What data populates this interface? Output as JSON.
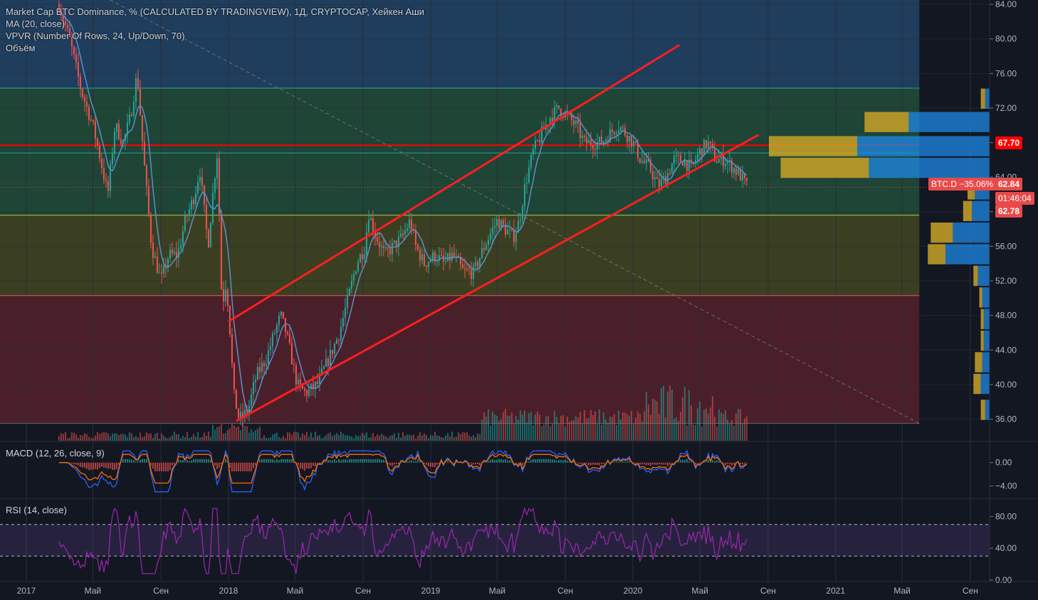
{
  "legend": {
    "title": "Market Cap BTC Dominance, % (CALCULATED BY TRADINGVIEW), 1Д, CRYPTOCAP, Хейкен Аши",
    "ma": "MA (20, close)",
    "vpvr": "VPVR (Number Of Rows, 24, Up/Down, 70)",
    "volume": "Объём"
  },
  "macd_title": "MACD (12, 26, close, 9)",
  "rsi_title": "RSI (14, close)",
  "price_tags": {
    "level": "67.70",
    "symbol": "BTC.D",
    "change": "−35.06%",
    "last": "62.84",
    "countdown": "01:46:04",
    "low": "62.78"
  },
  "colors": {
    "up": "#26a69a",
    "down": "#ef5350",
    "channel": "#ff1f1f",
    "ma": "#5b8fc9",
    "rsi": "#9c27b0",
    "macd": "#2962ff",
    "signal": "#ff6d00",
    "tag_red": "#e84a4a",
    "tag_level": "#ff0000"
  },
  "chart_data": {
    "type": "candlestick",
    "symbol": "Market Cap BTC Dominance, %",
    "timeframe": "1Д",
    "x_axis": {
      "ticks": [
        "2017",
        "Май",
        "Сен",
        "2018",
        "Май",
        "Сен",
        "2019",
        "Май",
        "Сен",
        "2020",
        "Май",
        "Сен",
        "2021",
        "Май",
        "Сен"
      ]
    },
    "price_axis": {
      "ticks": [
        "84.00",
        "80.00",
        "76.00",
        "72.00",
        "68.00",
        "64.00",
        "60.00",
        "56.00",
        "52.00",
        "48.00",
        "44.00",
        "40.00",
        "36.00"
      ],
      "range": [
        33.5,
        84.5
      ]
    },
    "price_path": [
      {
        "d": "2017-03-01",
        "v": 84
      },
      {
        "d": "2017-03-20",
        "v": 80
      },
      {
        "d": "2017-04-10",
        "v": 74
      },
      {
        "d": "2017-05-01",
        "v": 70
      },
      {
        "d": "2017-05-15",
        "v": 66
      },
      {
        "d": "2017-05-28",
        "v": 62
      },
      {
        "d": "2017-06-10",
        "v": 70
      },
      {
        "d": "2017-06-25",
        "v": 68
      },
      {
        "d": "2017-07-08",
        "v": 71
      },
      {
        "d": "2017-07-20",
        "v": 76
      },
      {
        "d": "2017-08-01",
        "v": 66
      },
      {
        "d": "2017-08-15",
        "v": 56
      },
      {
        "d": "2017-09-01",
        "v": 52
      },
      {
        "d": "2017-09-15",
        "v": 55
      },
      {
        "d": "2017-10-01",
        "v": 55
      },
      {
        "d": "2017-10-15",
        "v": 59
      },
      {
        "d": "2017-11-01",
        "v": 62
      },
      {
        "d": "2017-11-10",
        "v": 65
      },
      {
        "d": "2017-11-25",
        "v": 56
      },
      {
        "d": "2017-12-05",
        "v": 63
      },
      {
        "d": "2017-12-12",
        "v": 67
      },
      {
        "d": "2017-12-20",
        "v": 49
      },
      {
        "d": "2017-12-28",
        "v": 52
      },
      {
        "d": "2018-01-05",
        "v": 45
      },
      {
        "d": "2018-01-10",
        "v": 39
      },
      {
        "d": "2018-01-20",
        "v": 36
      },
      {
        "d": "2018-02-05",
        "v": 37
      },
      {
        "d": "2018-02-20",
        "v": 41
      },
      {
        "d": "2018-03-10",
        "v": 43
      },
      {
        "d": "2018-03-25",
        "v": 46
      },
      {
        "d": "2018-04-05",
        "v": 48
      },
      {
        "d": "2018-04-15",
        "v": 46
      },
      {
        "d": "2018-04-25",
        "v": 43
      },
      {
        "d": "2018-05-05",
        "v": 40
      },
      {
        "d": "2018-05-20",
        "v": 39
      },
      {
        "d": "2018-06-10",
        "v": 40
      },
      {
        "d": "2018-07-01",
        "v": 43
      },
      {
        "d": "2018-07-20",
        "v": 46
      },
      {
        "d": "2018-08-05",
        "v": 50
      },
      {
        "d": "2018-08-20",
        "v": 54
      },
      {
        "d": "2018-09-05",
        "v": 56
      },
      {
        "d": "2018-09-10",
        "v": 60
      },
      {
        "d": "2018-09-25",
        "v": 57
      },
      {
        "d": "2018-10-10",
        "v": 55
      },
      {
        "d": "2018-10-25",
        "v": 56
      },
      {
        "d": "2018-11-10",
        "v": 57
      },
      {
        "d": "2018-11-25",
        "v": 59
      },
      {
        "d": "2018-12-05",
        "v": 56
      },
      {
        "d": "2018-12-20",
        "v": 54
      },
      {
        "d": "2019-01-10",
        "v": 55
      },
      {
        "d": "2019-01-25",
        "v": 54
      },
      {
        "d": "2019-02-10",
        "v": 55
      },
      {
        "d": "2019-03-01",
        "v": 53
      },
      {
        "d": "2019-03-20",
        "v": 53
      },
      {
        "d": "2019-04-01",
        "v": 55
      },
      {
        "d": "2019-04-15",
        "v": 57
      },
      {
        "d": "2019-05-01",
        "v": 59
      },
      {
        "d": "2019-05-15",
        "v": 58
      },
      {
        "d": "2019-05-30",
        "v": 57
      },
      {
        "d": "2019-06-10",
        "v": 59
      },
      {
        "d": "2019-06-20",
        "v": 63
      },
      {
        "d": "2019-07-05",
        "v": 67
      },
      {
        "d": "2019-07-20",
        "v": 69
      },
      {
        "d": "2019-08-05",
        "v": 71
      },
      {
        "d": "2019-08-20",
        "v": 72
      },
      {
        "d": "2019-09-05",
        "v": 71
      },
      {
        "d": "2019-09-20",
        "v": 70
      },
      {
        "d": "2019-10-05",
        "v": 68
      },
      {
        "d": "2019-10-20",
        "v": 68
      },
      {
        "d": "2019-11-05",
        "v": 68
      },
      {
        "d": "2019-11-20",
        "v": 69
      },
      {
        "d": "2019-12-05",
        "v": 70
      },
      {
        "d": "2019-12-20",
        "v": 69
      },
      {
        "d": "2020-01-01",
        "v": 68
      },
      {
        "d": "2020-01-15",
        "v": 66
      },
      {
        "d": "2020-02-01",
        "v": 65
      },
      {
        "d": "2020-02-15",
        "v": 63
      },
      {
        "d": "2020-03-01",
        "v": 64
      },
      {
        "d": "2020-03-15",
        "v": 66
      },
      {
        "d": "2020-04-01",
        "v": 66
      },
      {
        "d": "2020-04-15",
        "v": 65
      },
      {
        "d": "2020-05-01",
        "v": 67
      },
      {
        "d": "2020-05-15",
        "v": 68
      },
      {
        "d": "2020-05-30",
        "v": 66
      },
      {
        "d": "2020-06-15",
        "v": 66
      },
      {
        "d": "2020-07-01",
        "v": 65
      },
      {
        "d": "2020-07-15",
        "v": 64
      },
      {
        "d": "2020-07-25",
        "v": 62.84
      }
    ],
    "channel_lines": [
      {
        "from": {
          "d": "2018-01-01",
          "v": 47.3
        },
        "to": {
          "d": "2020-03-25",
          "v": 79.3
        }
      },
      {
        "from": {
          "d": "2018-01-15",
          "v": 35.8
        },
        "to": {
          "d": "2020-08-15",
          "v": 68.9
        }
      }
    ],
    "horizontal_lines": [
      {
        "v": 74.3,
        "color": "#26a69a"
      },
      {
        "v": 67.7,
        "color": "#ff0000"
      },
      {
        "v": 66.8,
        "color": "#26a69a"
      },
      {
        "v": 59.6,
        "color": "#c0ca33"
      },
      {
        "v": 50.3,
        "color": "#ef5350"
      },
      {
        "v": 35.5,
        "color": "#666666"
      }
    ],
    "zones": [
      {
        "from": 74.3,
        "to": 86,
        "color": "#1f3d5c"
      },
      {
        "from": 59.6,
        "to": 74.3,
        "color": "#1e4536"
      },
      {
        "from": 50.3,
        "to": 59.6,
        "to_color": "",
        "color": "#3a3f22"
      },
      {
        "from": 35.5,
        "to": 50.3,
        "color": "#4a1f2a"
      }
    ],
    "vpvr_rows": [
      {
        "v": 73.0,
        "up": 0.03,
        "down": 0.03
      },
      {
        "v": 70.3,
        "up": 0.3,
        "down": 0.55
      },
      {
        "v": 67.5,
        "up": 0.6,
        "down": 0.9
      },
      {
        "v": 65.0,
        "up": 0.6,
        "down": 0.82
      },
      {
        "v": 62.5,
        "up": 0.05,
        "down": 0.1
      },
      {
        "v": 60.0,
        "up": 0.06,
        "down": 0.12
      },
      {
        "v": 57.5,
        "up": 0.15,
        "down": 0.25
      },
      {
        "v": 55.0,
        "up": 0.12,
        "down": 0.3
      },
      {
        "v": 52.5,
        "up": 0.03,
        "down": 0.08
      },
      {
        "v": 50.0,
        "up": 0.02,
        "down": 0.05
      },
      {
        "v": 47.5,
        "up": 0.02,
        "down": 0.04
      },
      {
        "v": 45.0,
        "up": 0.02,
        "down": 0.04
      },
      {
        "v": 42.5,
        "up": 0.05,
        "down": 0.05
      },
      {
        "v": 40.0,
        "up": 0.05,
        "down": 0.06
      },
      {
        "v": 37.0,
        "up": 0.03,
        "down": 0.03
      }
    ],
    "macd": {
      "ticks": [
        "0.00",
        "−4.00"
      ],
      "range": [
        -6,
        3.5
      ]
    },
    "rsi": {
      "ticks": [
        "80.00",
        "40.00",
        "0.00"
      ],
      "range": [
        -2,
        102
      ],
      "band": [
        30,
        70
      ]
    }
  }
}
